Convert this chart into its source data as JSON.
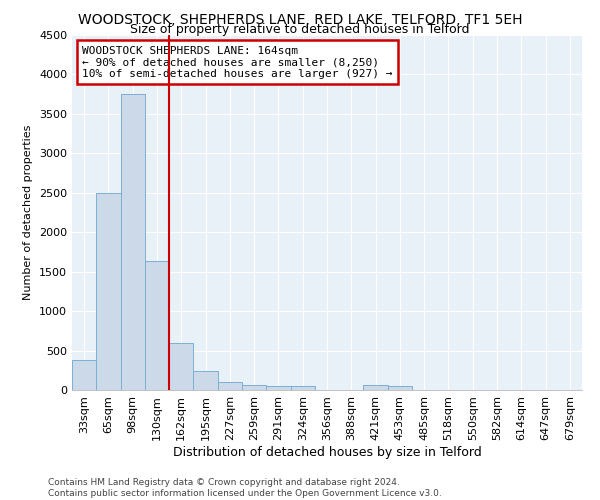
{
  "title": "WOODSTOCK, SHEPHERDS LANE, RED LAKE, TELFORD, TF1 5EH",
  "subtitle": "Size of property relative to detached houses in Telford",
  "xlabel": "Distribution of detached houses by size in Telford",
  "ylabel": "Number of detached properties",
  "categories": [
    "33sqm",
    "65sqm",
    "98sqm",
    "130sqm",
    "162sqm",
    "195sqm",
    "227sqm",
    "259sqm",
    "291sqm",
    "324sqm",
    "356sqm",
    "388sqm",
    "421sqm",
    "453sqm",
    "485sqm",
    "518sqm",
    "550sqm",
    "582sqm",
    "614sqm",
    "647sqm",
    "679sqm"
  ],
  "values": [
    375,
    2500,
    3750,
    1640,
    600,
    240,
    100,
    60,
    50,
    50,
    0,
    0,
    60,
    50,
    0,
    0,
    0,
    0,
    0,
    0,
    0
  ],
  "bar_color": "#ccd9e8",
  "bar_edge_color": "#7bafd4",
  "vline_color": "#cc0000",
  "annotation_line1": "WOODSTOCK SHEPHERDS LANE: 164sqm",
  "annotation_line2": "← 90% of detached houses are smaller (8,250)",
  "annotation_line3": "10% of semi-detached houses are larger (927) →",
  "annotation_box_color": "white",
  "annotation_box_edge": "#cc0000",
  "ylim": [
    0,
    4500
  ],
  "yticks": [
    0,
    500,
    1000,
    1500,
    2000,
    2500,
    3000,
    3500,
    4000,
    4500
  ],
  "bg_color": "#e8f0f8",
  "footer_text": "Contains HM Land Registry data © Crown copyright and database right 2024.\nContains public sector information licensed under the Open Government Licence v3.0.",
  "title_fontsize": 10,
  "subtitle_fontsize": 9,
  "xlabel_fontsize": 9,
  "ylabel_fontsize": 8,
  "tick_fontsize": 8,
  "annotation_fontsize": 8,
  "footer_fontsize": 6.5
}
